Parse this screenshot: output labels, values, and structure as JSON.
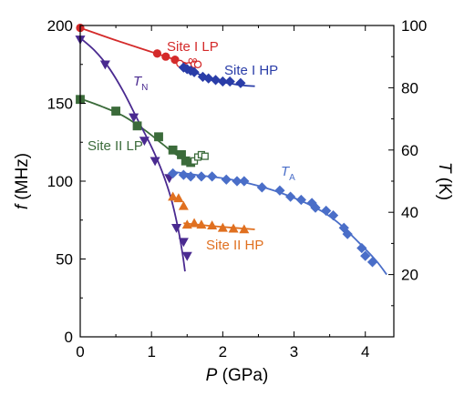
{
  "chart_data": {
    "type": "scatter",
    "x_axis": {
      "label_italic": "P",
      "label_rest": " (GPa)",
      "range": [
        0,
        4.4
      ],
      "ticks": [
        0,
        1,
        2,
        3,
        4
      ],
      "tick_labels": [
        "0",
        "1",
        "2",
        "3",
        "4"
      ]
    },
    "y_left_axis": {
      "label_italic": "f",
      "label_rest": " (MHz)",
      "range": [
        0,
        200
      ],
      "ticks": [
        0,
        50,
        100,
        150,
        200
      ],
      "tick_labels": [
        "0",
        "50",
        "100",
        "150",
        "200"
      ]
    },
    "y_right_axis": {
      "label_italic": "T",
      "label_rest": " (K)",
      "range": [
        0,
        100
      ],
      "ticks": [
        20,
        40,
        60,
        80,
        100
      ],
      "tick_labels": [
        "20",
        "40",
        "60",
        "80",
        "100"
      ]
    },
    "grid": false,
    "series": [
      {
        "name": "Site I LP",
        "axis": "left",
        "color": "#d42a2a",
        "marker": "circle",
        "points": [
          [
            0.0,
            198.5
          ],
          [
            1.08,
            182
          ],
          [
            1.2,
            180
          ],
          [
            1.33,
            178
          ]
        ],
        "open_points": [
          [
            1.4,
            175.5
          ],
          [
            1.52,
            174
          ],
          [
            1.6,
            175
          ],
          [
            1.65,
            175
          ]
        ],
        "fit": [
          [
            0.0,
            198.5
          ],
          [
            0.5,
            190.5
          ],
          [
            1.0,
            183
          ],
          [
            1.5,
            175.5
          ]
        ]
      },
      {
        "name": "Site I HP",
        "axis": "right",
        "color": "#2a3da8",
        "marker": "diamond",
        "points": [
          [
            1.45,
            86.5
          ],
          [
            1.5,
            86
          ],
          [
            1.55,
            85.5
          ],
          [
            1.6,
            85
          ],
          [
            1.72,
            83.5
          ],
          [
            1.8,
            83
          ],
          [
            1.9,
            82.5
          ],
          [
            2.0,
            82
          ],
          [
            2.1,
            82
          ],
          [
            2.25,
            81.5
          ]
        ],
        "fit": [
          [
            1.4,
            87.5
          ],
          [
            1.8,
            83
          ],
          [
            2.2,
            81
          ],
          [
            2.45,
            80.5
          ]
        ]
      },
      {
        "name": "Site II LP",
        "axis": "left",
        "color": "#3b6b3a",
        "marker": "square",
        "points": [
          [
            0.0,
            152.5
          ],
          [
            0.5,
            145
          ],
          [
            0.8,
            135.5
          ],
          [
            1.1,
            128.5
          ],
          [
            1.3,
            120
          ],
          [
            1.42,
            117
          ],
          [
            1.48,
            113
          ],
          [
            1.55,
            112
          ]
        ],
        "open_points": [
          [
            1.6,
            113
          ],
          [
            1.65,
            115.5
          ],
          [
            1.7,
            117
          ],
          [
            1.75,
            116
          ]
        ],
        "fit": [
          [
            0.0,
            153
          ],
          [
            0.3,
            148
          ],
          [
            0.6,
            142
          ],
          [
            0.9,
            133
          ],
          [
            1.15,
            124
          ],
          [
            1.35,
            117
          ],
          [
            1.55,
            113.5
          ]
        ]
      },
      {
        "name": "Site II HP",
        "axis": "left",
        "color": "#e07020",
        "marker": "triangle-up",
        "points": [
          [
            1.3,
            90
          ],
          [
            1.38,
            89
          ],
          [
            1.45,
            84
          ],
          [
            1.5,
            72
          ],
          [
            1.6,
            73
          ],
          [
            1.7,
            72
          ],
          [
            1.85,
            71.5
          ],
          [
            2.0,
            70
          ],
          [
            2.15,
            69.5
          ],
          [
            2.3,
            69
          ]
        ],
        "fit": [
          [
            1.45,
            73
          ],
          [
            1.9,
            71
          ],
          [
            2.45,
            69
          ]
        ]
      },
      {
        "name": "T_N",
        "axis": "right",
        "color": "#4a2a90",
        "marker": "triangle-down",
        "points": [
          [
            0.0,
            95.5
          ],
          [
            0.35,
            87.5
          ],
          [
            0.75,
            70.5
          ],
          [
            0.9,
            63
          ],
          [
            1.05,
            56.5
          ],
          [
            1.25,
            51
          ],
          [
            1.35,
            35
          ],
          [
            1.45,
            30.5
          ],
          [
            1.5,
            26
          ]
        ],
        "fit": [
          [
            0.0,
            96
          ],
          [
            0.2,
            92
          ],
          [
            0.4,
            86.5
          ],
          [
            0.6,
            79
          ],
          [
            0.8,
            70
          ],
          [
            1.0,
            61
          ],
          [
            1.15,
            53
          ],
          [
            1.28,
            44
          ],
          [
            1.38,
            34
          ],
          [
            1.44,
            26
          ],
          [
            1.47,
            21
          ]
        ]
      },
      {
        "name": "T_A",
        "axis": "right",
        "color": "#4a6ec8",
        "marker": "diamond",
        "points": [
          [
            1.3,
            52.5
          ],
          [
            1.45,
            52
          ],
          [
            1.55,
            51.5
          ],
          [
            1.7,
            51.5
          ],
          [
            1.85,
            51.5
          ],
          [
            2.05,
            50.5
          ],
          [
            2.2,
            50
          ],
          [
            2.3,
            50
          ],
          [
            2.55,
            48
          ],
          [
            2.8,
            47
          ],
          [
            2.95,
            45
          ],
          [
            3.1,
            44
          ],
          [
            3.25,
            43
          ],
          [
            3.3,
            41.5
          ],
          [
            3.45,
            40.5
          ],
          [
            3.55,
            39
          ],
          [
            3.7,
            35
          ],
          [
            3.75,
            33
          ],
          [
            3.95,
            28.5
          ],
          [
            4.0,
            26
          ],
          [
            4.1,
            24
          ]
        ],
        "fit": [
          [
            1.3,
            53
          ],
          [
            1.7,
            51.8
          ],
          [
            2.1,
            50.6
          ],
          [
            2.5,
            48.5
          ],
          [
            2.9,
            45.5
          ],
          [
            3.3,
            41.5
          ],
          [
            3.6,
            37
          ],
          [
            3.9,
            30.5
          ],
          [
            4.15,
            24.5
          ],
          [
            4.3,
            20
          ]
        ]
      }
    ],
    "annotations": {
      "site_i_lp": "Site I LP",
      "open_circles": "∞",
      "site_i_hp": "Site I HP",
      "site_ii_lp": "Site II LP",
      "site_ii_hp": "Site II HP",
      "t_n_main": "T",
      "t_n_sub": "N",
      "t_a_main": "T",
      "t_a_sub": "A"
    }
  }
}
